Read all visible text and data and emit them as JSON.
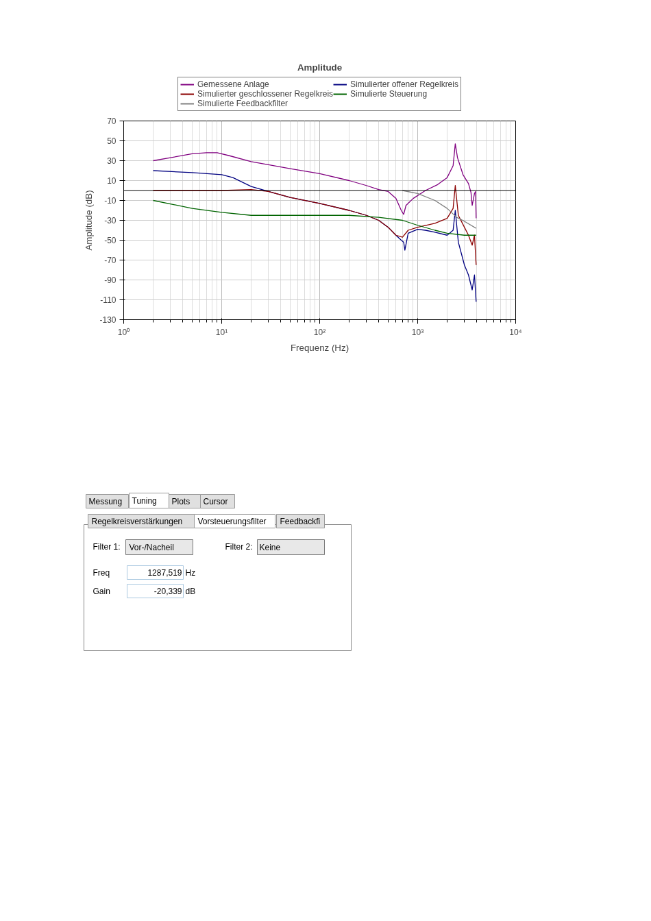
{
  "chart_data": [
    {
      "type": "line",
      "title": "Amplitude",
      "xlabel": "Frequenz (Hz)",
      "ylabel": "Amplitude (dB)",
      "log": "x",
      "xlim": [
        1,
        10000
      ],
      "xticks": [
        {
          "value": 1,
          "label": "10⁰"
        },
        {
          "value": 10,
          "label": "10¹"
        },
        {
          "value": 100,
          "label": "10²"
        },
        {
          "value": 1000,
          "label": "10³"
        },
        {
          "value": 10000,
          "label": "10⁴"
        }
      ],
      "ylim": [
        -130,
        70
      ],
      "yticks": [
        -130,
        -110,
        -90,
        -70,
        -50,
        -30,
        -10,
        10,
        30,
        50,
        70
      ],
      "grid": true,
      "legend": "top",
      "ref_lines": [
        {
          "axis": "y",
          "value": 0,
          "color": "#000000"
        }
      ],
      "series": [
        {
          "name": "Gemessene Anlage",
          "color": "#800080",
          "x": [
            2,
            3,
            5,
            7,
            9,
            12,
            20,
            30,
            50,
            100,
            200,
            300,
            400,
            500,
            600,
            680,
            720,
            760,
            900,
            1200,
            1600,
            2000,
            2300,
            2420,
            2550,
            2900,
            3300,
            3500,
            3600,
            3800,
            3900,
            3950
          ],
          "values": [
            30,
            33,
            37,
            38,
            38,
            35,
            29,
            26,
            22,
            17,
            10,
            5,
            1,
            -1,
            -8,
            -20,
            -24,
            -15,
            -8,
            0,
            6,
            13,
            25,
            47,
            33,
            16,
            7,
            -2,
            -15,
            -3,
            -1,
            -28
          ]
        },
        {
          "name": "Simulierter offener Regelkreis",
          "color": "#000080",
          "x": [
            2,
            5,
            10,
            13,
            20,
            30,
            50,
            100,
            200,
            300,
            400,
            500,
            600,
            680,
            720,
            740,
            800,
            1000,
            1200,
            1500,
            2000,
            2300,
            2420,
            2600,
            3000,
            3300,
            3600,
            3800,
            3950
          ],
          "values": [
            20,
            18,
            16,
            13,
            4,
            -1,
            -7,
            -13,
            -20,
            -25,
            -30,
            -37,
            -45,
            -50,
            -52,
            -60,
            -43,
            -39,
            -40,
            -42,
            -45,
            -40,
            -20,
            -52,
            -75,
            -85,
            -100,
            -85,
            -112
          ]
        },
        {
          "name": "Simulierter geschlossener Regelkreis",
          "color": "#8b0000",
          "x": [
            2,
            10,
            20,
            30,
            50,
            100,
            200,
            300,
            400,
            500,
            600,
            700,
            800,
            1000,
            1500,
            2000,
            2300,
            2420,
            2600,
            3000,
            3300,
            3600,
            3800,
            3950
          ],
          "values": [
            0,
            0,
            1,
            -1,
            -7,
            -13,
            -20,
            -25,
            -30,
            -37,
            -45,
            -47,
            -40,
            -37,
            -33,
            -28,
            -18,
            5,
            -25,
            -37,
            -45,
            -55,
            -45,
            -75
          ]
        },
        {
          "name": "Simulierte Steuerung",
          "color": "#006400",
          "x": [
            2,
            5,
            10,
            20,
            50,
            100,
            200,
            400,
            700,
            1000,
            1500,
            2000,
            3000,
            3950
          ],
          "values": [
            -10,
            -18,
            -22,
            -25,
            -25,
            -25,
            -25,
            -27,
            -30,
            -35,
            -40,
            -43,
            -45,
            -45
          ]
        },
        {
          "name": "Simulierte Feedbackfilter",
          "color": "#808080",
          "x": [
            700,
            1000,
            1500,
            2000,
            2500,
            3000,
            3950
          ],
          "values": [
            0,
            -3,
            -10,
            -18,
            -27,
            -31,
            -38
          ]
        }
      ]
    },
    {
      "type": "other",
      "annotations": [
        "Messung",
        "Tuning",
        "Plots",
        "Cursor",
        "Regelkreisverstärkungen",
        "Vorsteuerungsfilter",
        "Feedbackfi",
        "Filter 1:",
        "Vor-/Nacheil",
        "Filter 2:",
        "Keine",
        "Freq",
        "1287,519",
        "Hz",
        "Gain",
        "-20,339",
        "dB"
      ]
    }
  ]
}
